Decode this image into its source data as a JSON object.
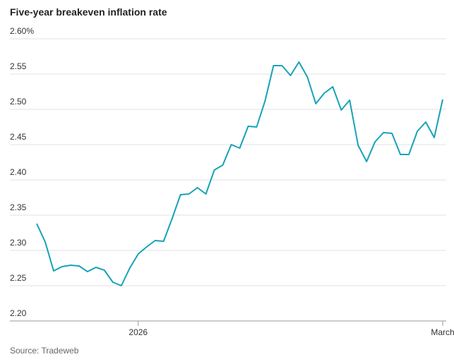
{
  "chart_data": {
    "type": "line",
    "title": "Five-year breakeven inflation rate",
    "source": "Source: Tradeweb",
    "categories": [
      null,
      null,
      null,
      null,
      null,
      null,
      null,
      null,
      null,
      null,
      null,
      null,
      "2026",
      null,
      null,
      null,
      null,
      null,
      null,
      null,
      null,
      null,
      null,
      null,
      null,
      null,
      null,
      null,
      null,
      null,
      null,
      null,
      null,
      null,
      null,
      null,
      null,
      null,
      null,
      null,
      null,
      null,
      null,
      null,
      null,
      null,
      null,
      null,
      "March"
    ],
    "values": [
      2.338,
      2.312,
      2.271,
      2.277,
      2.279,
      2.278,
      2.27,
      2.276,
      2.272,
      2.255,
      2.25,
      2.275,
      2.295,
      2.305,
      2.314,
      2.313,
      2.345,
      2.379,
      2.38,
      2.389,
      2.38,
      2.414,
      2.421,
      2.45,
      2.445,
      2.476,
      2.475,
      2.512,
      2.562,
      2.562,
      2.548,
      2.567,
      2.546,
      2.508,
      2.523,
      2.532,
      2.499,
      2.513,
      2.449,
      2.426,
      2.454,
      2.467,
      2.466,
      2.436,
      2.436,
      2.469,
      2.482,
      2.46,
      2.514
    ],
    "color": "#17a2b8",
    "ylim": [
      2.2,
      2.6
    ],
    "yticks": [
      {
        "value": 2.2,
        "label": "2.20"
      },
      2.25,
      {
        "value": 2.3,
        "label": "2.30"
      },
      2.35,
      {
        "value": 2.4,
        "label": "2.40"
      },
      2.45,
      {
        "value": 2.5,
        "label": "2.50"
      },
      2.55,
      {
        "value": 2.6,
        "label": "2.60%"
      }
    ],
    "grid": true
  }
}
